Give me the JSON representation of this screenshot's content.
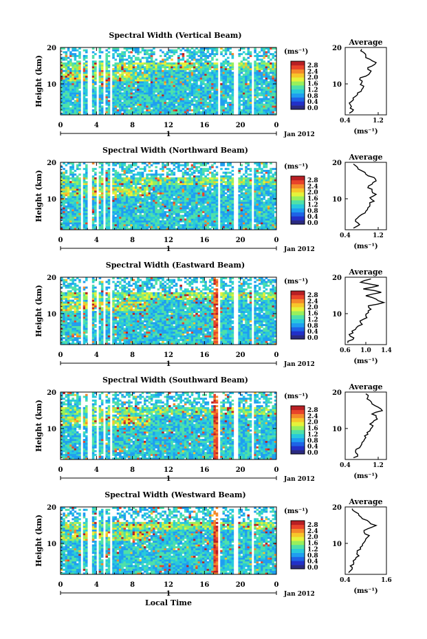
{
  "figure": {
    "xlabel": "Local Time",
    "date_label": "Jan 2012",
    "day_marker": "1"
  },
  "colorbar": {
    "unit_label": "(ms⁻¹)",
    "ticks": [
      "2.8",
      "2.4",
      "2.0",
      "1.6",
      "1.2",
      "0.8",
      "0.4",
      "0.0"
    ],
    "colors": [
      "#2b2a80",
      "#2230c8",
      "#1e63e6",
      "#1f9ef0",
      "#27c9dc",
      "#4fe0a8",
      "#98ef5c",
      "#e5f23a",
      "#f7c62a",
      "#f4892a",
      "#e8432a",
      "#b81f24"
    ]
  },
  "chart_data": [
    {
      "type": "heatmap",
      "title": "Spectral Width (Vertical Beam)",
      "ylabel": "Height (km)",
      "xticks": [
        "0",
        "4",
        "8",
        "12",
        "16",
        "20",
        "0"
      ],
      "yticks": [
        "20",
        "10"
      ],
      "xlim": [
        0,
        24
      ],
      "ylim": [
        1.5,
        20
      ],
      "profile": {
        "title": "Average",
        "xticks": [
          "0.4",
          "1.2"
        ],
        "xlabel": "(ms⁻¹)",
        "xlim": [
          0.4,
          1.4
        ],
        "values": [
          0.5,
          0.6,
          0.55,
          0.5,
          0.6,
          0.65,
          0.7,
          0.8,
          0.85,
          0.8,
          0.75,
          0.9,
          1.0,
          0.95,
          1.05,
          1.15,
          1.0,
          0.9,
          0.85,
          0.8
        ]
      }
    },
    {
      "type": "heatmap",
      "title": "Spectral Width (Northward Beam)",
      "ylabel": "Height (km)",
      "xticks": [
        "0",
        "4",
        "8",
        "12",
        "16",
        "20",
        "0"
      ],
      "yticks": [
        "20",
        "10"
      ],
      "xlim": [
        0,
        24
      ],
      "ylim": [
        1.5,
        20
      ],
      "profile": {
        "title": "Average",
        "xticks": [
          "0.4",
          "1.2"
        ],
        "xlabel": "(ms⁻¹)",
        "xlim": [
          0.4,
          1.4
        ],
        "values": [
          0.6,
          0.75,
          0.65,
          0.7,
          0.8,
          0.9,
          0.95,
          1.0,
          1.1,
          1.0,
          1.15,
          1.05,
          0.95,
          1.05,
          1.15,
          1.1,
          0.9,
          0.8,
          0.7,
          0.6
        ]
      }
    },
    {
      "type": "heatmap",
      "title": "Spectral Width (Eastward Beam)",
      "ylabel": "Height (km)",
      "xticks": [
        "0",
        "4",
        "8",
        "12",
        "16",
        "20",
        "0"
      ],
      "yticks": [
        "20",
        "10"
      ],
      "xlim": [
        0,
        24
      ],
      "ylim": [
        1.5,
        20
      ],
      "profile": {
        "title": "Average",
        "xticks": [
          "0.6",
          "1.0",
          "1.4"
        ],
        "xlabel": "(ms⁻¹)",
        "xlim": [
          0.6,
          1.4
        ],
        "values": [
          0.65,
          0.75,
          0.7,
          0.75,
          0.8,
          0.85,
          0.9,
          0.95,
          1.0,
          1.05,
          1.1,
          1.05,
          1.35,
          1.2,
          1.0,
          1.3,
          0.95,
          1.25,
          0.9,
          1.1
        ]
      }
    },
    {
      "type": "heatmap",
      "title": "Spectral Width (Southward Beam)",
      "ylabel": "Height (km)",
      "xticks": [
        "0",
        "4",
        "8",
        "12",
        "16",
        "20",
        "0"
      ],
      "yticks": [
        "20",
        "10"
      ],
      "xlim": [
        0,
        24
      ],
      "ylim": [
        1.5,
        20
      ],
      "profile": {
        "title": "Average",
        "xticks": [
          "0.4",
          "1.2"
        ],
        "xlabel": "(ms⁻¹)",
        "xlim": [
          0.4,
          1.4
        ],
        "values": [
          0.6,
          0.7,
          0.65,
          0.75,
          0.8,
          0.85,
          0.9,
          0.95,
          1.0,
          1.05,
          1.0,
          1.1,
          1.15,
          1.05,
          1.3,
          1.2,
          1.05,
          1.0,
          0.95,
          0.9
        ]
      }
    },
    {
      "type": "heatmap",
      "title": "Spectral Width (Westward Beam)",
      "ylabel": "Height (km)",
      "xticks": [
        "0",
        "4",
        "8",
        "12",
        "16",
        "20",
        "0"
      ],
      "yticks": [
        "20",
        "10"
      ],
      "xlim": [
        0,
        24
      ],
      "ylim": [
        1.5,
        20
      ],
      "profile": {
        "title": "Average",
        "xticks": [
          "0.4",
          "1.6"
        ],
        "xlabel": "(ms⁻¹)",
        "xlim": [
          0.4,
          1.6
        ],
        "values": [
          0.5,
          0.6,
          0.55,
          0.65,
          0.7,
          0.8,
          0.75,
          0.85,
          0.9,
          0.95,
          1.0,
          1.1,
          0.95,
          1.05,
          1.3,
          1.1,
          0.9,
          0.8,
          0.7,
          0.6
        ]
      }
    }
  ]
}
